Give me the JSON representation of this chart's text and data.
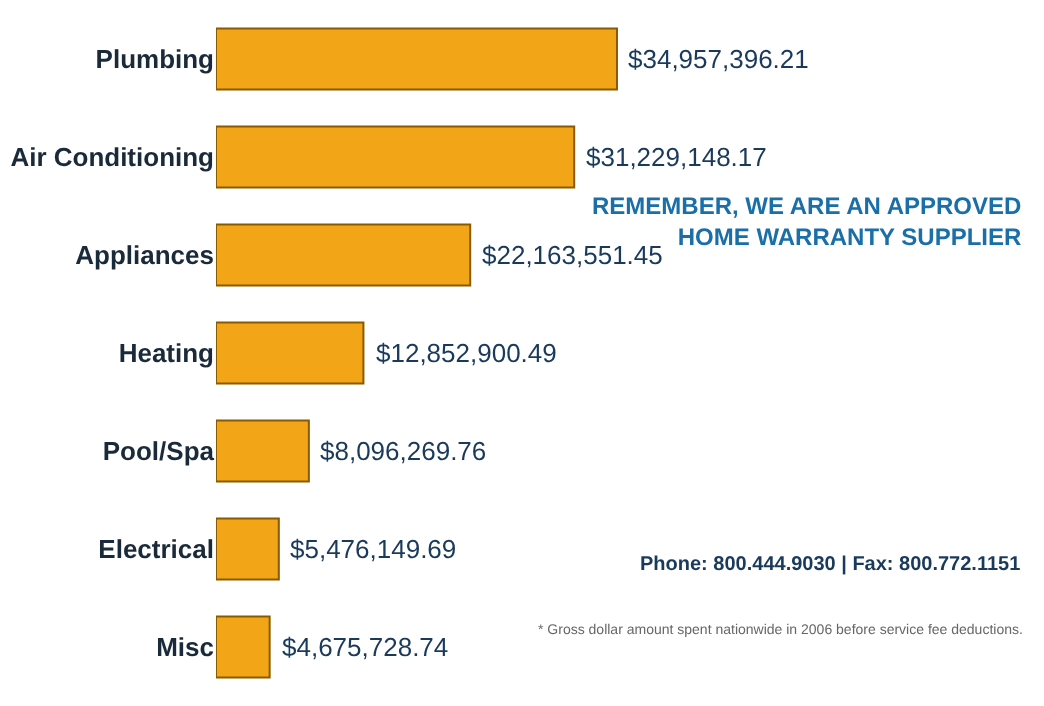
{
  "chart_data": {
    "type": "bar",
    "orientation": "horizontal",
    "categories": [
      "Plumbing",
      "Air Conditioning",
      "Appliances",
      "Heating",
      "Pool/Spa",
      "Electrical",
      "Misc"
    ],
    "values": [
      34957396.21,
      31229148.17,
      22163551.45,
      12852900.49,
      8096269.76,
      5476149.69,
      4675728.74
    ],
    "value_labels": [
      "$34,957,396.21",
      "$31,229,148.17",
      "$22,163,551.45",
      "$12,852,900.49",
      "$8,096,269.76",
      "$5,476,149.69",
      "$4,675,728.74"
    ],
    "color": "#f2a516",
    "annotations": [
      "REMEMBER, WE ARE AN APPROVED HOME WARRANTY SUPPLIER",
      "Phone: 800.444.9030 | Fax: 800.772.1151",
      "* Gross dollar amount spent nationwide in 2006 before service fee deductions."
    ]
  }
}
